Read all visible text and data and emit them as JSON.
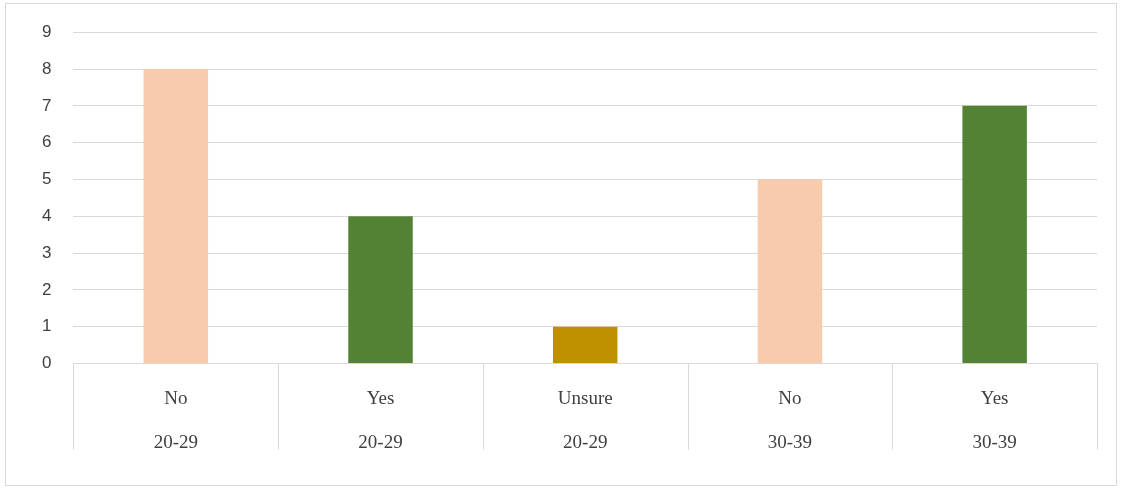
{
  "chart_data": {
    "type": "bar",
    "categories": [
      "No\n20-29",
      "Yes\n20-29",
      "Unsure\n20-29",
      "No\n30-39",
      "Yes\n30-39"
    ],
    "values": [
      8,
      4,
      1,
      5,
      7
    ],
    "colors": [
      "#f8cbad",
      "#548235",
      "#bf9000",
      "#f8cbad",
      "#548235"
    ],
    "ylim": [
      0,
      9
    ],
    "yticks": [
      0,
      1,
      2,
      3,
      4,
      5,
      6,
      7,
      8,
      9
    ],
    "grid": "y",
    "legend": false
  }
}
